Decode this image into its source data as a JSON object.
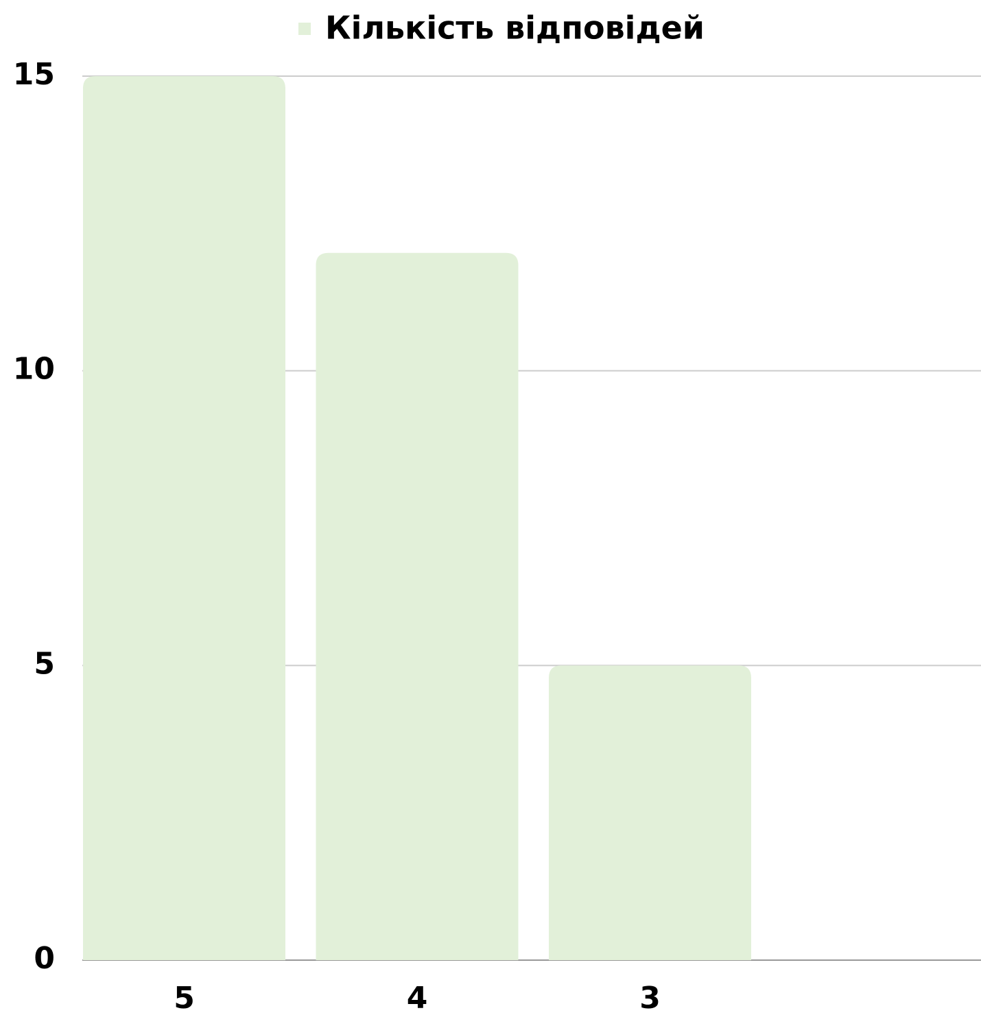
{
  "chart_data": {
    "type": "bar",
    "categories": [
      "5",
      "4",
      "3"
    ],
    "series": [
      {
        "name": "Кількість відповідей",
        "color": "#e2f0d9",
        "values": [
          15,
          12,
          5
        ]
      }
    ],
    "ylim": [
      0,
      15
    ],
    "yticks": [
      0,
      5,
      10,
      15
    ],
    "grid": true,
    "legend": "top"
  }
}
